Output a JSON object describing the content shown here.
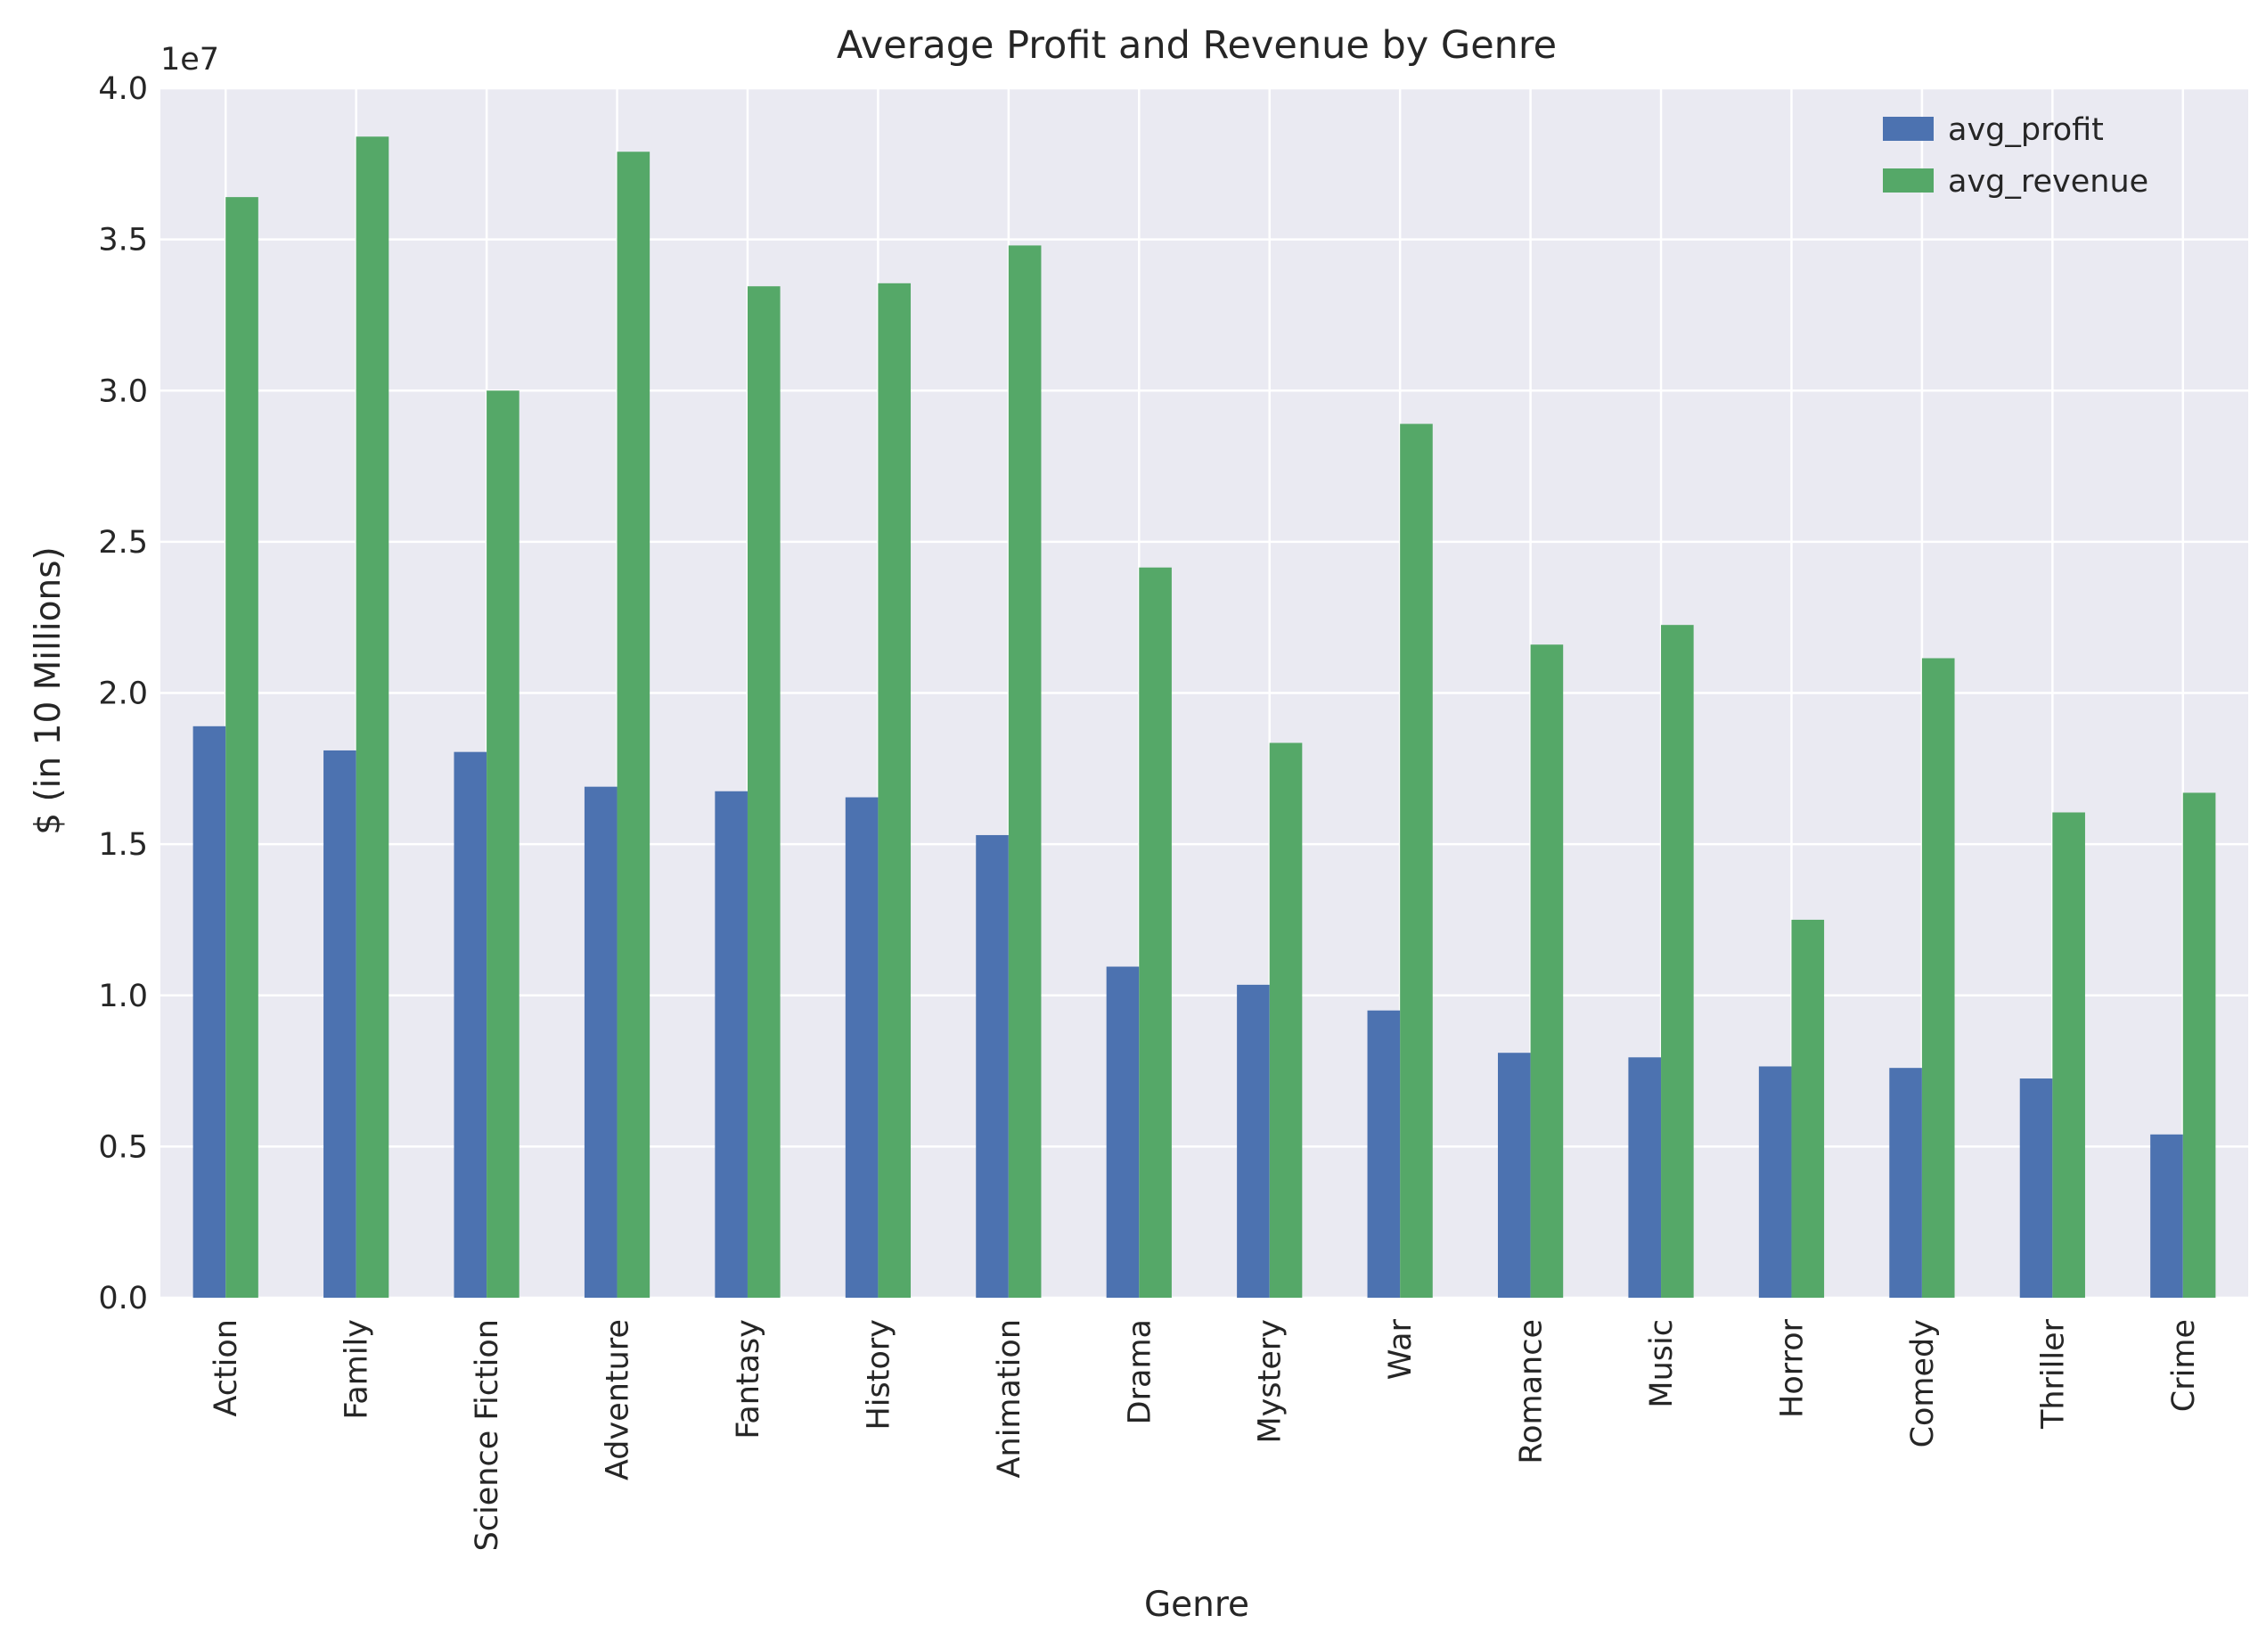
{
  "chart_data": {
    "type": "bar",
    "title": "Average Profit and Revenue by Genre",
    "xlabel": "Genre",
    "ylabel": "$ (in 10 Millions)",
    "y_offset_label": "1e7",
    "ylim": [
      0,
      40000000
    ],
    "y_ticks": [
      0,
      5000000,
      10000000,
      15000000,
      20000000,
      25000000,
      30000000,
      35000000,
      40000000
    ],
    "y_tick_labels": [
      "0.0",
      "0.5",
      "1.0",
      "1.5",
      "2.0",
      "2.5",
      "3.0",
      "3.5",
      "4.0"
    ],
    "grid": true,
    "legend_position": "top-right",
    "categories": [
      "Action",
      "Family",
      "Science Fiction",
      "Adventure",
      "Fantasy",
      "History",
      "Animation",
      "Drama",
      "Mystery",
      "War",
      "Romance",
      "Music",
      "Horror",
      "Comedy",
      "Thriller",
      "Crime"
    ],
    "series": [
      {
        "name": "avg_profit",
        "color": "#4c72b0",
        "values": [
          18900000,
          18100000,
          18050000,
          16900000,
          16750000,
          16550000,
          15300000,
          10950000,
          10350000,
          9500000,
          8100000,
          7950000,
          7650000,
          7600000,
          7250000,
          5400000
        ]
      },
      {
        "name": "avg_revenue",
        "color": "#55a868",
        "values": [
          36400000,
          38400000,
          30000000,
          37900000,
          33450000,
          33550000,
          34800000,
          24150000,
          18350000,
          28900000,
          21600000,
          22250000,
          12500000,
          21150000,
          16050000,
          16700000
        ]
      }
    ],
    "colors": {
      "plot_background": "#eaeaf2",
      "grid": "#ffffff",
      "text": "#262626"
    }
  }
}
